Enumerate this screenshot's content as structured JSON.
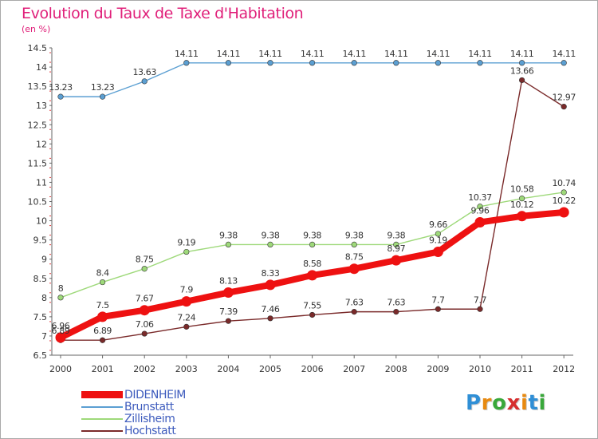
{
  "chart_data": {
    "type": "line",
    "title": "Evolution du Taux de Taxe d'Habitation",
    "ylabel": "(en %)",
    "xlabel": "",
    "x": [
      "2000",
      "2001",
      "2002",
      "2003",
      "2004",
      "2005",
      "2006",
      "2007",
      "2008",
      "2009",
      "2010",
      "2011",
      "2012"
    ],
    "ylim": [
      6.5,
      14.5
    ],
    "yticks": [
      "6.5",
      "7",
      "7.5",
      "8",
      "8.5",
      "9",
      "9.5",
      "10",
      "10.5",
      "11",
      "11.5",
      "12",
      "12.5",
      "13",
      "13.5",
      "14",
      "14.5"
    ],
    "grid": false,
    "legend_position": "bottom-left",
    "series": [
      {
        "name": "DIDENHEIM",
        "color": "#ee1111",
        "bold": true,
        "values": [
          6.96,
          7.5,
          7.67,
          7.9,
          8.13,
          8.33,
          8.58,
          8.75,
          8.97,
          9.19,
          9.96,
          10.12,
          10.22
        ],
        "labels": [
          "6.96",
          "7.5",
          "7.67",
          "7.9",
          "8.13",
          "8.33",
          "8.58",
          "8.75",
          "8.97",
          "9.19",
          "9.96",
          "10.12",
          "10.22"
        ]
      },
      {
        "name": "Brunstatt",
        "color": "#5b9fd2",
        "bold": false,
        "values": [
          13.23,
          13.23,
          13.63,
          14.11,
          14.11,
          14.11,
          14.11,
          14.11,
          14.11,
          14.11,
          14.11,
          14.11,
          14.11
        ],
        "labels": [
          "13.23",
          "13.23",
          "13.63",
          "14.11",
          "14.11",
          "14.11",
          "14.11",
          "14.11",
          "14.11",
          "14.11",
          "14.11",
          "14.11",
          "14.11"
        ]
      },
      {
        "name": "Zillisheim",
        "color": "#9ed97a",
        "bold": false,
        "values": [
          8,
          8.4,
          8.75,
          9.19,
          9.38,
          9.38,
          9.38,
          9.38,
          9.38,
          9.66,
          10.37,
          10.58,
          10.74
        ],
        "labels": [
          "8",
          "8.4",
          "8.75",
          "9.19",
          "9.38",
          "9.38",
          "9.38",
          "9.38",
          "9.38",
          "9.66",
          "10.37",
          "10.58",
          "10.74"
        ]
      },
      {
        "name": "Hochstatt",
        "color": "#7a2a2a",
        "bold": false,
        "values": [
          6.89,
          6.89,
          7.06,
          7.24,
          7.39,
          7.46,
          7.55,
          7.63,
          7.63,
          7.7,
          7.7,
          13.66,
          12.97
        ],
        "labels": [
          "6.89",
          "6.89",
          "7.06",
          "7.24",
          "7.39",
          "7.46",
          "7.55",
          "7.63",
          "7.63",
          "7.7",
          "7.7",
          "13.66",
          "12.97"
        ]
      }
    ]
  },
  "logo": {
    "letters": [
      "P",
      "r",
      "o",
      "x",
      "i",
      "t",
      "i"
    ],
    "colors": [
      "#2f8fd6",
      "#e88a10",
      "#39a83a",
      "#d62f2f",
      "#e88a10",
      "#2f8fd6",
      "#39a83a"
    ]
  }
}
